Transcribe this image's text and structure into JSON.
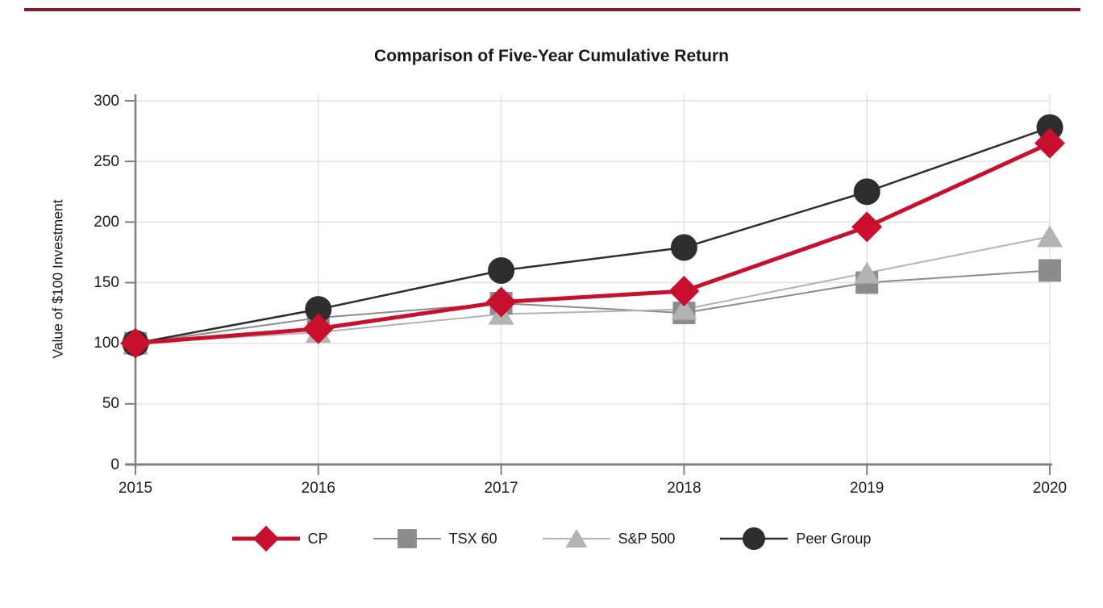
{
  "page": {
    "top_rule_color": "#7b202b",
    "background": "#ffffff"
  },
  "chart_data": {
    "type": "line",
    "title": "Comparison of Five-Year Cumulative Return",
    "xlabel": "",
    "ylabel": "Value of $100 Investment",
    "x": [
      "2015",
      "2016",
      "2017",
      "2018",
      "2019",
      "2020"
    ],
    "ylim": [
      0,
      300
    ],
    "ytick_step": 50,
    "yticks": [
      "0",
      "50",
      "100",
      "150",
      "200",
      "250",
      "300"
    ],
    "grid": true,
    "legend_position": "bottom-center",
    "colors": {
      "grid": "#e2e2e2",
      "axis": "#7f7f7f",
      "text": "#1a1a1a"
    },
    "series": [
      {
        "name": "CP",
        "marker": "diamond",
        "color": "#c8102e",
        "line_width": 5,
        "values": [
          100,
          112,
          134,
          143,
          196,
          265
        ]
      },
      {
        "name": "TSX 60",
        "marker": "square",
        "color": "#8c8c8c",
        "line_width": 2,
        "values": [
          100,
          121,
          133,
          125,
          150,
          160
        ]
      },
      {
        "name": "S&P 500",
        "marker": "triangle",
        "color": "#b3b3b3",
        "line_width": 2,
        "values": [
          100,
          109,
          124,
          128,
          158,
          188
        ]
      },
      {
        "name": "Peer Group",
        "marker": "circle",
        "color": "#2d2d2d",
        "line_width": 2.5,
        "values": [
          100,
          128,
          160,
          179,
          225,
          278
        ]
      }
    ]
  }
}
